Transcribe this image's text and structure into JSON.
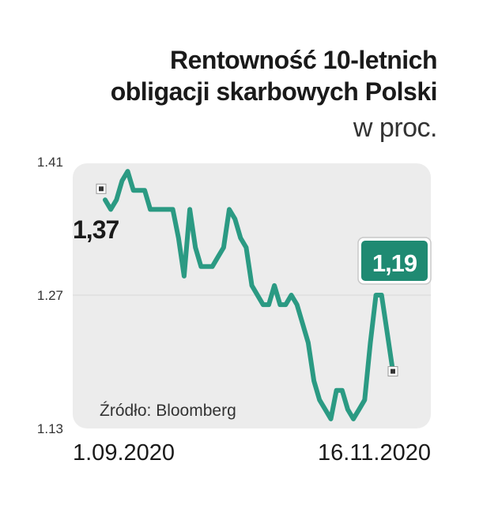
{
  "chart_data": {
    "type": "line",
    "title_lines": [
      "Rentowność 10-letnich",
      "obligacji skarbowych Polski"
    ],
    "subtitle": "w proc.",
    "source": "Źródło: Bloomberg",
    "ylim": [
      1.13,
      1.41
    ],
    "yticks": [
      "1.41",
      "1.27",
      "1.13"
    ],
    "x_tick_labels": [
      "1.09.2020",
      "16.11.2020"
    ],
    "start_label": "1,37",
    "end_label": "1,19",
    "line_color": "#2b9a83",
    "end_badge_color": "#1f8a72",
    "series": [
      {
        "values": [
          1.37,
          1.36,
          1.37,
          1.39,
          1.4,
          1.38,
          1.38,
          1.38,
          1.36,
          1.36,
          1.36,
          1.36,
          1.36,
          1.33,
          1.29,
          1.36,
          1.32,
          1.3,
          1.3,
          1.3,
          1.31,
          1.32,
          1.36,
          1.35,
          1.33,
          1.32,
          1.28,
          1.27,
          1.26,
          1.26,
          1.28,
          1.26,
          1.26,
          1.27,
          1.26,
          1.24,
          1.22,
          1.18,
          1.16,
          1.15,
          1.14,
          1.17,
          1.17,
          1.15,
          1.14,
          1.15,
          1.16,
          1.22,
          1.27,
          1.27,
          1.23,
          1.19
        ]
      }
    ]
  }
}
